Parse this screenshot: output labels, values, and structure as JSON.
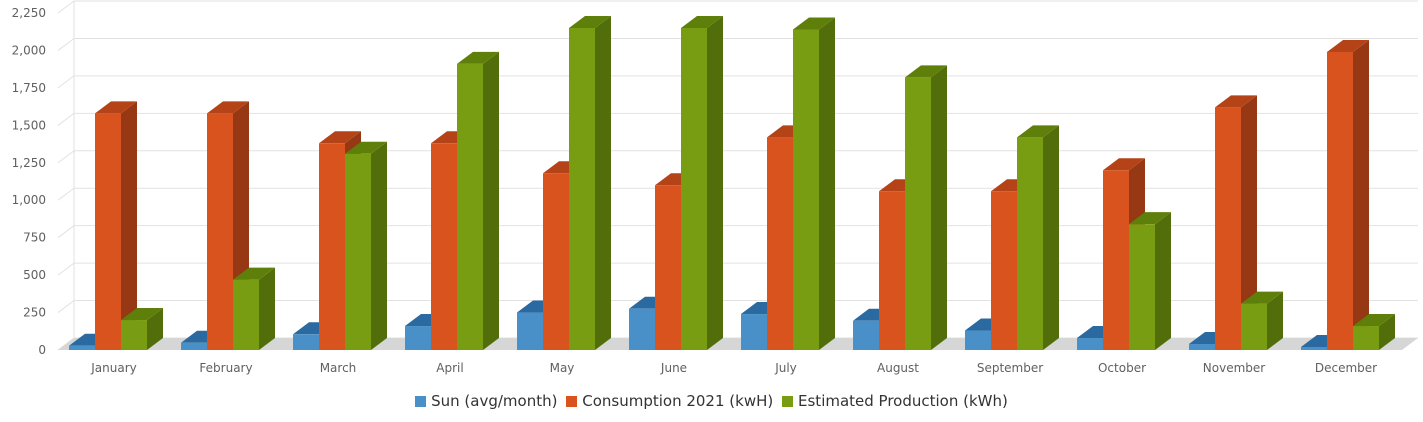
{
  "chart_data": {
    "type": "bar",
    "categories": [
      "January",
      "February",
      "March",
      "April",
      "May",
      "June",
      "July",
      "August",
      "September",
      "October",
      "November",
      "December"
    ],
    "series": [
      {
        "name": "Sun (avg/month)",
        "color": "#4a90c8",
        "side": "#2f6a98",
        "top": "#2a6aa0",
        "values": [
          28,
          48,
          105,
          160,
          250,
          275,
          240,
          195,
          130,
          80,
          40,
          20
        ]
      },
      {
        "name": "Consumption 2021 (kwH)",
        "color": "#d9531e",
        "side": "#963814",
        "top": "#b44318",
        "values": [
          1580,
          1580,
          1380,
          1380,
          1180,
          1100,
          1420,
          1060,
          1060,
          1200,
          1620,
          1990
        ]
      },
      {
        "name": "Estimated Production (kWh)",
        "color": "#789c12",
        "side": "#526e0a",
        "top": "#5e800b",
        "values": [
          200,
          470,
          1310,
          1910,
          2150,
          2150,
          2140,
          1820,
          1420,
          840,
          310,
          160
        ]
      }
    ],
    "yticks": [
      "0",
      "250",
      "500",
      "750",
      "1,000",
      "1,250",
      "1,500",
      "1,750",
      "2,000",
      "2,250"
    ],
    "ylim": [
      0,
      2250
    ],
    "grid": true,
    "legend_position": "bottom",
    "title": "",
    "xlabel": "",
    "ylabel": ""
  }
}
